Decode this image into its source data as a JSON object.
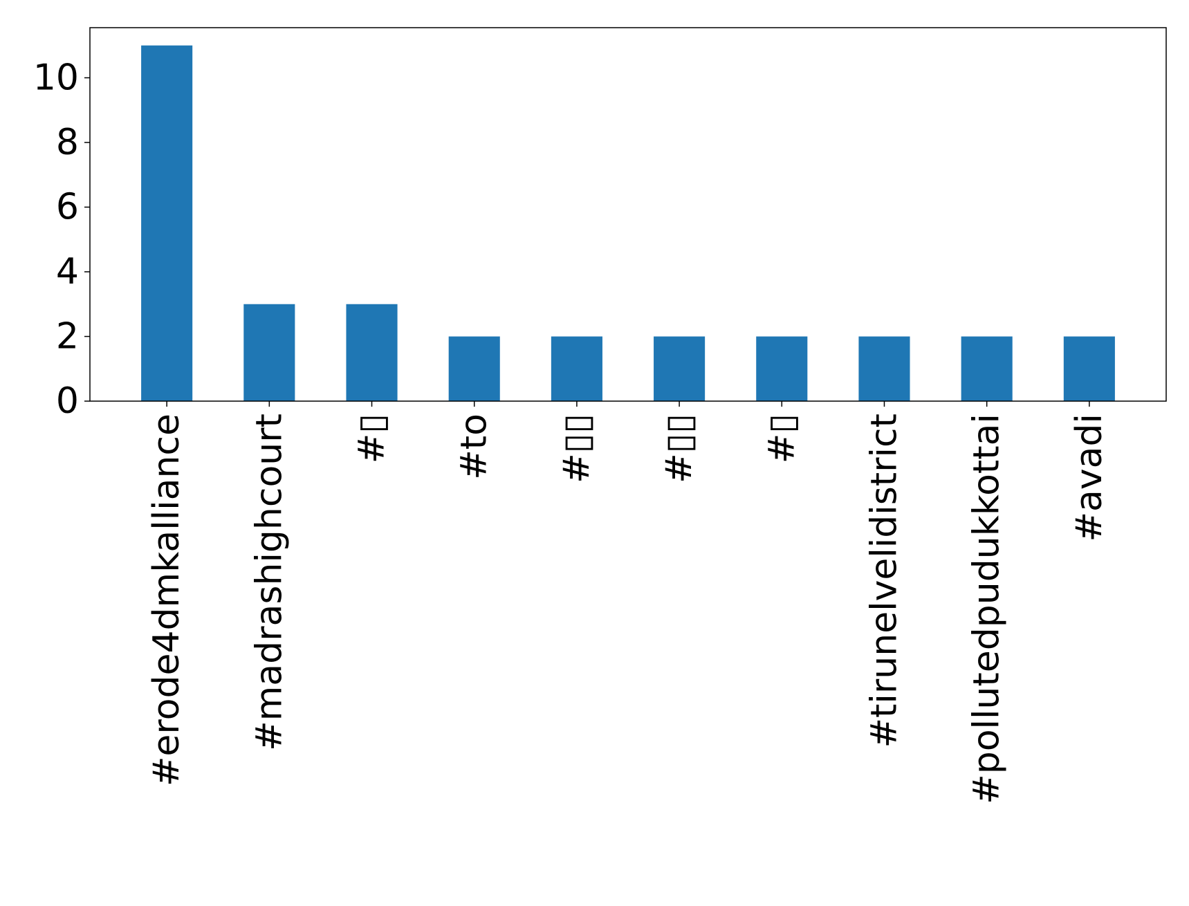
{
  "chart_data": {
    "type": "bar",
    "title": "",
    "xlabel": "",
    "ylabel": "",
    "categories": [
      "#erode4dmkalliance",
      "#madrashighcourt",
      "#▯",
      "#to",
      "#▯▯",
      "#▯▯",
      "#▯",
      "#tirunelvelidistrict",
      "#pollutedpudukkottai",
      "#avadi"
    ],
    "values": [
      11,
      3,
      3,
      2,
      2,
      2,
      2,
      2,
      2,
      2
    ],
    "ylim": [
      0,
      11.55
    ],
    "yticks": [
      0,
      2,
      4,
      6,
      8,
      10
    ],
    "grid": false,
    "legend": "none",
    "bar_color": "#1f77b4"
  }
}
